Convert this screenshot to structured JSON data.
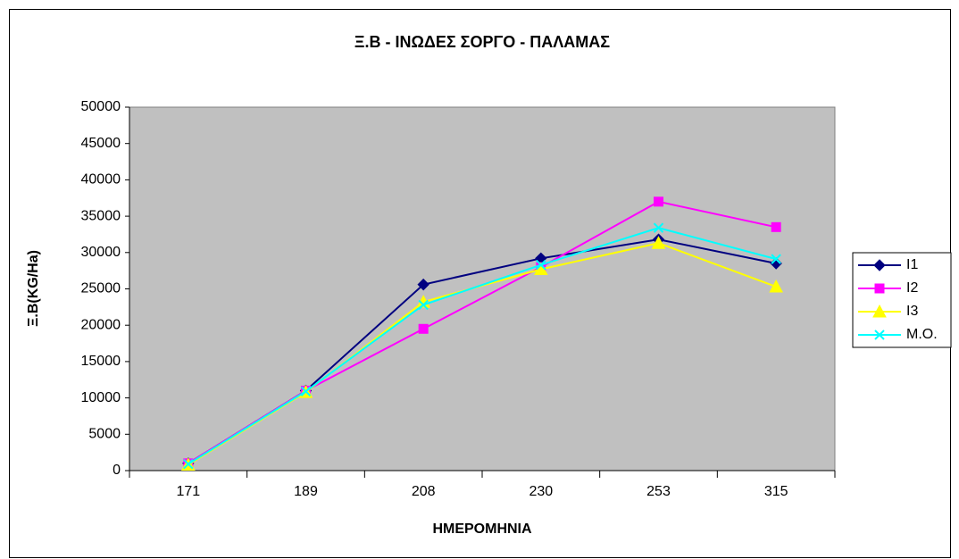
{
  "chart_data": {
    "type": "line",
    "title": "Ξ.Β - ΙΝΩΔΕΣ ΣΟΡΓΟ - ΠΑΛΑΜΑΣ",
    "x_label": "ΗΜΕΡΟΜΗΝΙΑ",
    "y_label": "Ξ.Β(KG/Ha)",
    "categories": [
      "171",
      "189",
      "208",
      "230",
      "253",
      "315"
    ],
    "series": [
      {
        "name": "I1",
        "color": "#000080",
        "marker": "diamond",
        "values": [
          1000,
          11000,
          25600,
          29200,
          31800,
          28500
        ]
      },
      {
        "name": "I2",
        "color": "#ff00ff",
        "marker": "square",
        "values": [
          1000,
          11000,
          19500,
          28000,
          37000,
          33500
        ]
      },
      {
        "name": "I3",
        "color": "#ffff00",
        "marker": "triangle",
        "values": [
          800,
          10800,
          23200,
          27700,
          31300,
          25300
        ]
      },
      {
        "name": "M.O.",
        "color": "#00ffff",
        "marker": "x",
        "values": [
          900,
          10900,
          22800,
          28300,
          33400,
          29100
        ]
      }
    ],
    "ylim": [
      0,
      50000
    ],
    "yticks": [
      0,
      5000,
      10000,
      15000,
      20000,
      25000,
      30000,
      35000,
      40000,
      45000,
      50000
    ],
    "plot_background": "#c0c0c0",
    "legend": "right"
  }
}
